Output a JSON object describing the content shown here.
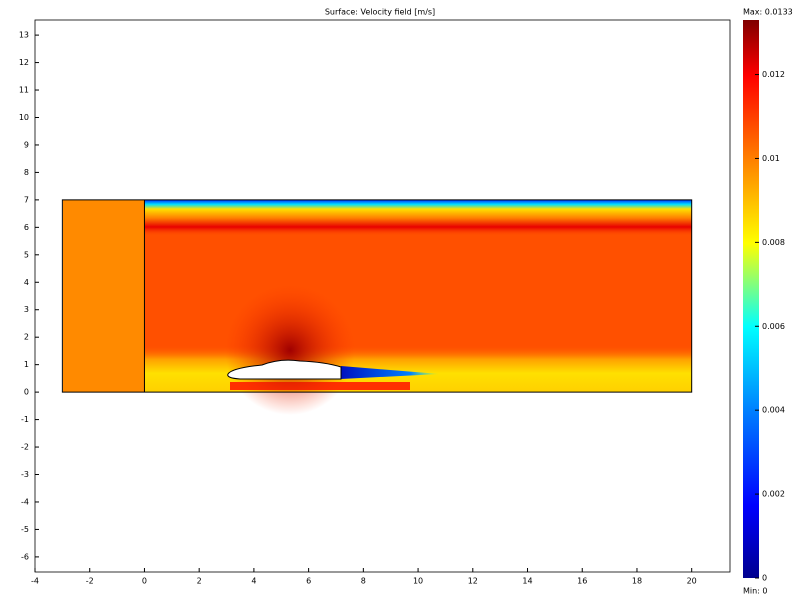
{
  "chart_data": {
    "type": "surface",
    "title": "Surface: Velocity field [m/s]",
    "xlim": [
      -4,
      21.4
    ],
    "xticks": [
      -4,
      -2,
      0,
      2,
      4,
      6,
      8,
      10,
      12,
      14,
      16,
      18,
      20
    ],
    "ylim": [
      -6.55,
      13.55
    ],
    "yticks": [
      -6,
      -5,
      -4,
      -3,
      -2,
      -1,
      0,
      1,
      2,
      3,
      4,
      5,
      6,
      7,
      8,
      9,
      10,
      11,
      12,
      13
    ],
    "domain_xlim": [
      -3,
      20
    ],
    "domain_ylim": [
      0,
      7
    ],
    "inlet_x": 0,
    "colorbar": {
      "lim": [
        0,
        0.0133
      ],
      "ticks": [
        0,
        0.002,
        0.004,
        0.006,
        0.008,
        0.01,
        0.012
      ],
      "max_label": "Max: 0.0133",
      "min_label": "Min: 0"
    }
  }
}
